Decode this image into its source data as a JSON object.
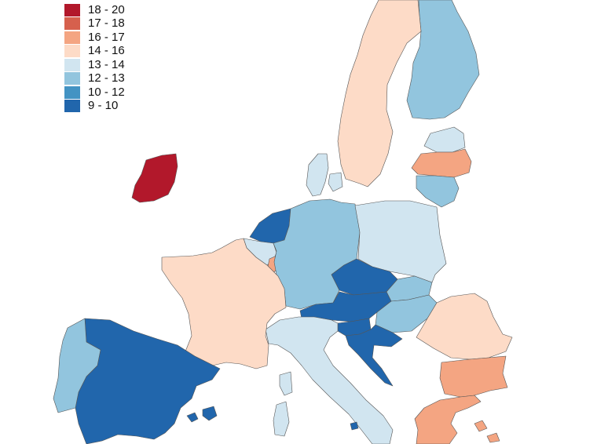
{
  "legend": [
    {
      "label": "18 - 20",
      "color": "#b2182b"
    },
    {
      "label": "17 - 18",
      "color": "#d6604d"
    },
    {
      "label": "16 - 17",
      "color": "#f4a582"
    },
    {
      "label": "14 - 16",
      "color": "#fddbc7"
    },
    {
      "label": "13 - 14",
      "color": "#d1e5f0"
    },
    {
      "label": "12 - 13",
      "color": "#92c5de"
    },
    {
      "label": "10 - 12",
      "color": "#4393c3"
    },
    {
      "label": "9 - 10",
      "color": "#2166ac"
    }
  ],
  "country_classes": {
    "ireland": "18 - 20",
    "netherlands": "9 - 10",
    "belgium": "13 - 14",
    "luxembourg": "16 - 17",
    "france": "14 - 16",
    "spain": "9 - 10",
    "portugal": "12 - 13",
    "germany": "12 - 13",
    "denmark": "13 - 14",
    "sweden": "14 - 16",
    "finland": "12 - 13",
    "estonia": "13 - 14",
    "latvia": "16 - 17",
    "lithuania": "12 - 13",
    "poland": "13 - 14",
    "czechia": "9 - 10",
    "slovakia": "12 - 13",
    "austria": "9 - 10",
    "hungary": "12 - 13",
    "slovenia": "9 - 10",
    "croatia": "9 - 10",
    "italy": "13 - 14",
    "romania": "14 - 16",
    "bulgaria": "16 - 17",
    "greece": "16 - 17",
    "malta": "9 - 10"
  }
}
